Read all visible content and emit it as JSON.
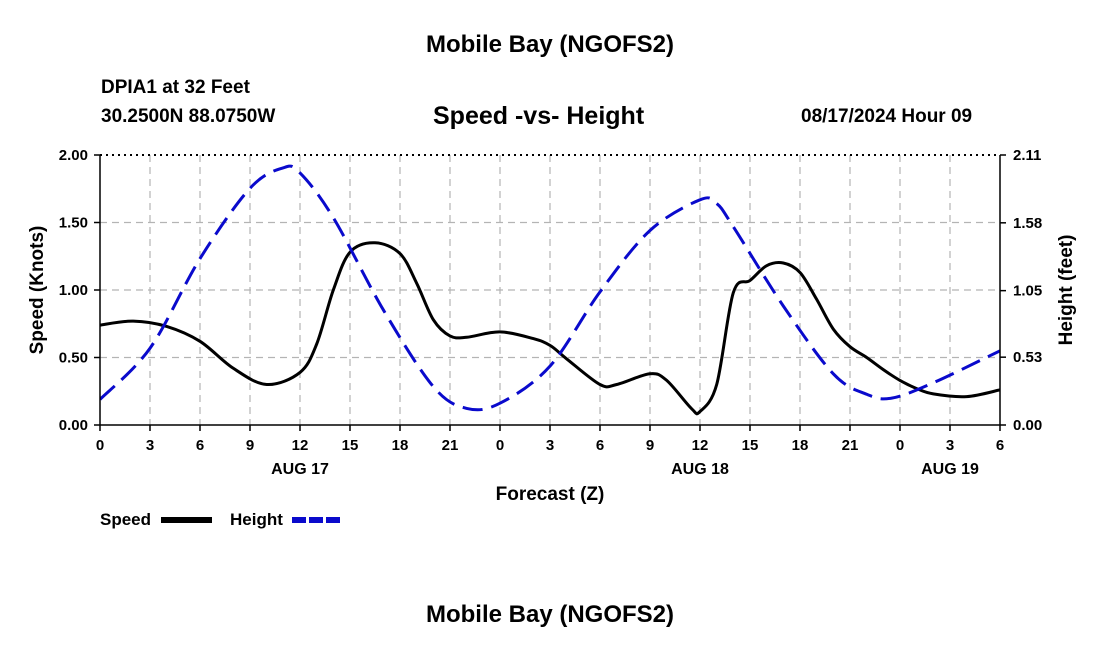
{
  "page": {
    "title_top": "Mobile Bay (NGOFS2)",
    "title_bottom": "Mobile Bay (NGOFS2)",
    "station": "DPIA1 at 32 Feet",
    "coords": "30.2500N  88.0750W",
    "forecast_time": "08/17/2024 Hour 09"
  },
  "colors": {
    "speed": "#000000",
    "height": "#0a0acc",
    "grid": "#b4b4b4"
  },
  "chart_data": {
    "type": "line",
    "title": "Speed -vs- Height",
    "xlabel": "Forecast (Z)",
    "ylabel_left": "Speed (Knots)",
    "ylabel_right": "Height (feet)",
    "x_unit": "hours from 00Z Aug 17",
    "xlim": [
      0,
      54
    ],
    "ylim_left": [
      0,
      2
    ],
    "ylim_right": [
      0,
      2.11
    ],
    "x_ticks": [
      0,
      3,
      6,
      9,
      12,
      15,
      18,
      21,
      24,
      27,
      30,
      33,
      36,
      39,
      42,
      45,
      48,
      51,
      54
    ],
    "x_tick_labels": [
      "0",
      "3",
      "6",
      "9",
      "12",
      "15",
      "18",
      "21",
      "0",
      "3",
      "6",
      "9",
      "12",
      "15",
      "18",
      "21",
      "0",
      "3",
      "6"
    ],
    "day_labels": [
      {
        "x": 12,
        "label": "AUG 17"
      },
      {
        "x": 36,
        "label": "AUG 18"
      },
      {
        "x": 51,
        "label": "AUG 19"
      }
    ],
    "y_left_ticks": [
      0,
      0.5,
      1,
      1.5,
      2
    ],
    "y_left_tick_labels": [
      "0.00",
      "0.50",
      "1.00",
      "1.50",
      "2.00"
    ],
    "y_right_ticks": [
      0,
      0.53,
      1.05,
      1.58,
      2.11
    ],
    "y_right_tick_labels": [
      "0.00",
      "0.53",
      "1.05",
      "1.58",
      "2.11"
    ],
    "grid": true,
    "legend_position": "bottom-left",
    "series": [
      {
        "name": "Speed",
        "axis": "left",
        "style": "solid",
        "x": [
          0,
          2,
          4,
          6,
          8,
          10,
          12,
          13,
          14,
          15,
          16.5,
          18,
          19,
          20,
          21,
          22,
          24,
          26,
          27,
          28,
          30,
          31,
          33,
          34,
          35.5,
          36,
          37,
          38,
          39,
          40,
          41,
          42,
          43,
          44,
          45,
          46,
          47,
          48,
          49,
          50,
          52,
          54
        ],
        "values": [
          0.74,
          0.77,
          0.73,
          0.62,
          0.42,
          0.3,
          0.39,
          0.6,
          1.0,
          1.28,
          1.35,
          1.27,
          1.05,
          0.78,
          0.66,
          0.65,
          0.69,
          0.64,
          0.59,
          0.49,
          0.3,
          0.3,
          0.38,
          0.33,
          0.12,
          0.1,
          0.3,
          0.98,
          1.07,
          1.18,
          1.2,
          1.13,
          0.93,
          0.71,
          0.58,
          0.5,
          0.41,
          0.33,
          0.27,
          0.23,
          0.21,
          0.26
        ]
      },
      {
        "name": "Height",
        "axis": "right",
        "style": "dashed",
        "x": [
          0,
          3,
          6,
          9,
          11,
          12,
          14,
          17,
          20,
          22,
          24,
          27,
          30,
          33,
          36,
          37,
          38,
          41,
          44,
          46,
          47.5,
          50,
          54
        ],
        "values": [
          0.2,
          0.6,
          1.3,
          1.85,
          2.01,
          1.97,
          1.62,
          0.9,
          0.3,
          0.13,
          0.17,
          0.46,
          1.04,
          1.52,
          1.76,
          1.73,
          1.55,
          0.93,
          0.4,
          0.24,
          0.21,
          0.33,
          0.58
        ]
      }
    ]
  }
}
